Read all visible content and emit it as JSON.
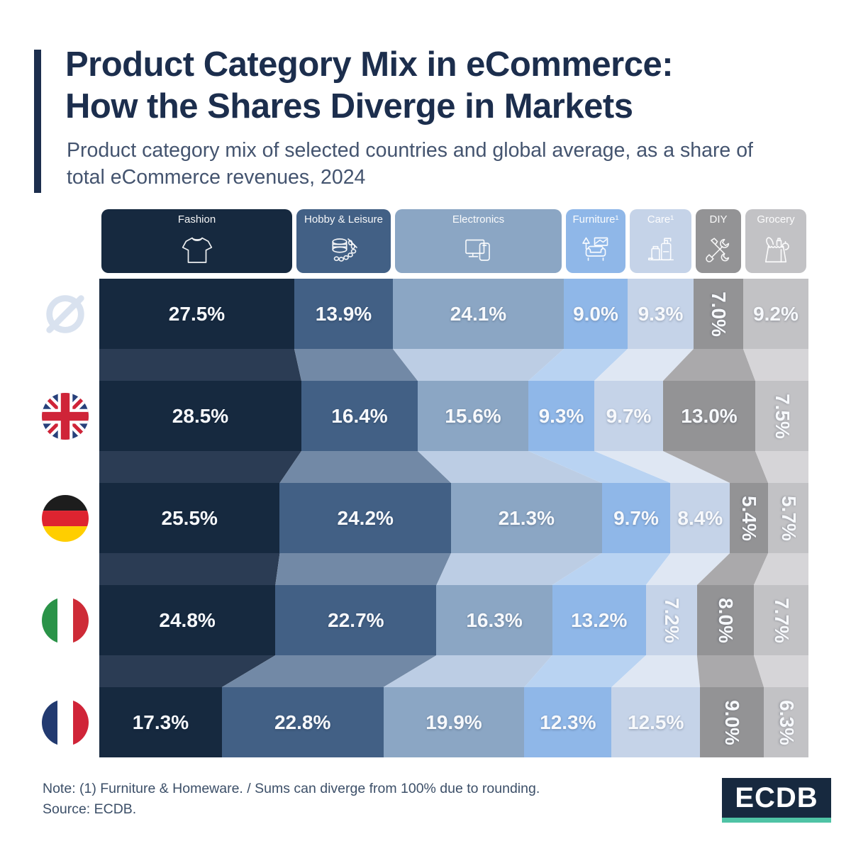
{
  "title": {
    "line1": "Product Category Mix in eCommerce:",
    "line2": "How the Shares Diverge in Markets"
  },
  "subtitle": "Product category mix of selected countries and global average, as a share of total eCommerce revenues, 2024",
  "footer": {
    "note": "Note: (1) Furniture & Homeware. / Sums can diverge from 100% due to rounding.",
    "source": "Source: ECDB."
  },
  "logo": {
    "text": "ECDB",
    "bg_color": "#17293f",
    "accent_color": "#4fc3a5"
  },
  "colors": {
    "title": "#1c2e4d",
    "subtitle": "#44546f",
    "note": "#3c4f68",
    "label_text": "#f7f9fc"
  },
  "chart_data": {
    "type": "bar",
    "variant": "100%-stacked-flow",
    "unit": "%",
    "year": "2024",
    "categories": [
      "Fashion",
      "Hobby & Leisure",
      "Electronics",
      "Furniture¹",
      "Care¹",
      "DIY",
      "Grocery"
    ],
    "category_icons": [
      "tshirt-icon",
      "hobby-leisure-icon",
      "electronics-icon",
      "furniture-icon",
      "care-icon",
      "diy-icon",
      "grocery-icon"
    ],
    "category_colors": [
      "#16293f",
      "#426085",
      "#8ba6c4",
      "#8fb7e8",
      "#c5d3e8",
      "#939395",
      "#c2c2c5"
    ],
    "connector_colors": [
      "#2b3c54",
      "#7289a6",
      "#bccde4",
      "#b9d3f2",
      "#dfe7f3",
      "#aaa9ab",
      "#d6d5d8"
    ],
    "rows": [
      {
        "label": "Global average",
        "flag": "average-symbol",
        "values": [
          27.5,
          13.9,
          24.1,
          9.0,
          9.3,
          7.0,
          9.2
        ],
        "rotated_labels": [
          false,
          false,
          false,
          false,
          false,
          true,
          false
        ]
      },
      {
        "label": "United Kingdom",
        "flag": "uk-flag",
        "values": [
          28.5,
          16.4,
          15.6,
          9.3,
          9.7,
          13.0,
          7.5
        ],
        "rotated_labels": [
          false,
          false,
          false,
          false,
          false,
          false,
          true
        ]
      },
      {
        "label": "Germany",
        "flag": "germany-flag",
        "values": [
          25.5,
          24.2,
          21.3,
          9.7,
          8.4,
          5.4,
          5.7
        ],
        "rotated_labels": [
          false,
          false,
          false,
          false,
          false,
          true,
          true
        ]
      },
      {
        "label": "Italy",
        "flag": "italy-flag",
        "values": [
          24.8,
          22.7,
          16.3,
          13.2,
          7.2,
          8.0,
          7.7
        ],
        "rotated_labels": [
          false,
          false,
          false,
          false,
          true,
          true,
          true
        ]
      },
      {
        "label": "France",
        "flag": "france-flag",
        "values": [
          17.3,
          22.8,
          19.9,
          12.3,
          12.5,
          9.0,
          6.3
        ],
        "rotated_labels": [
          false,
          false,
          false,
          false,
          false,
          true,
          true
        ]
      }
    ]
  }
}
